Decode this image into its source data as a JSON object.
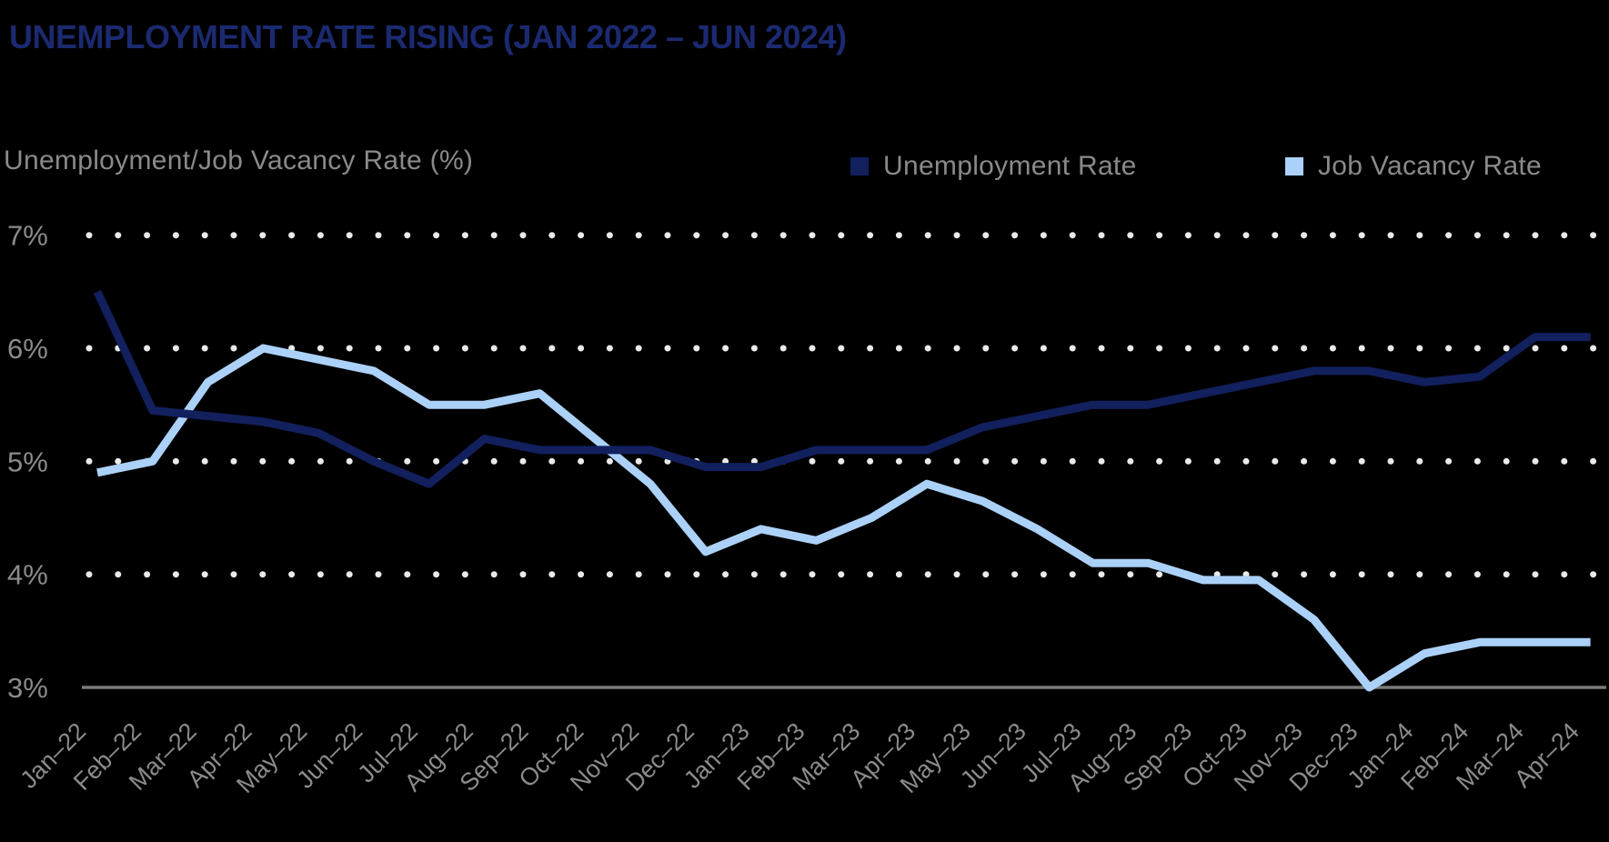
{
  "header": {
    "title": "UNEMPLOYMENT RATE RISING (JAN 2022 – JUN 2024)",
    "axis_title": "Unemployment/Job Vacancy Rate (%)"
  },
  "legend": {
    "items": [
      {
        "label": "Unemployment Rate",
        "color": "#12205e"
      },
      {
        "label": "Job Vacancy Rate",
        "color": "#abd1f8"
      }
    ]
  },
  "colors": {
    "background": "#000000",
    "title_navy": "#1b2a70",
    "navy_line": "#12205e",
    "light_blue_line": "#abd1f8",
    "gray_text": "#8a8a8a",
    "tick_text": "#8b8b8b",
    "grid_dot": "#eaeae8",
    "axis_line": "#7b7b7b"
  },
  "chart_data": {
    "type": "line",
    "title": "UNEMPLOYMENT RATE RISING (JAN 2022 – JUN 2024)",
    "ylabel": "Unemployment/Job Vacancy Rate (%)",
    "ylim": [
      3,
      7
    ],
    "ytick_values": [
      7,
      6,
      5,
      4,
      3
    ],
    "ytick_suffix": "%",
    "grid": "dotted horizontal rows at 4-7%, solid baseline at 3%",
    "legend_position": "top-right",
    "categories": [
      "Jan–22",
      "Feb–22",
      "Mar–22",
      "Apr–22",
      "May–22",
      "Jun–22",
      "Jul–22",
      "Aug–22",
      "Sep–22",
      "Oct–22",
      "Nov–22",
      "Dec–22",
      "Jan–23",
      "Feb–23",
      "Mar–23",
      "Apr–23",
      "May–23",
      "Jun–23",
      "Jul–23",
      "Aug–23",
      "Sep–23",
      "Oct–23",
      "Nov–23",
      "Dec–23",
      "Jan–24",
      "Feb–24",
      "Mar–24",
      "Apr–24"
    ],
    "series": [
      {
        "name": "Job Vacancy Rate",
        "color": "#abd1f8",
        "values": [
          4.9,
          5.0,
          5.7,
          6.0,
          5.9,
          5.8,
          5.5,
          5.5,
          5.6,
          5.2,
          4.8,
          4.2,
          4.4,
          4.3,
          4.5,
          4.8,
          4.65,
          4.4,
          4.1,
          4.1,
          3.95,
          3.95,
          3.6,
          3.0,
          3.3,
          3.4,
          3.4,
          3.4
        ]
      },
      {
        "name": "Unemployment Rate",
        "color": "#12205e",
        "values": [
          6.5,
          5.45,
          5.4,
          5.35,
          5.25,
          5.0,
          4.8,
          5.2,
          5.1,
          5.1,
          5.1,
          4.95,
          4.95,
          5.1,
          5.1,
          5.1,
          5.3,
          5.4,
          5.5,
          5.5,
          5.6,
          5.7,
          5.8,
          5.8,
          5.7,
          5.75,
          6.1,
          6.1
        ]
      }
    ]
  }
}
